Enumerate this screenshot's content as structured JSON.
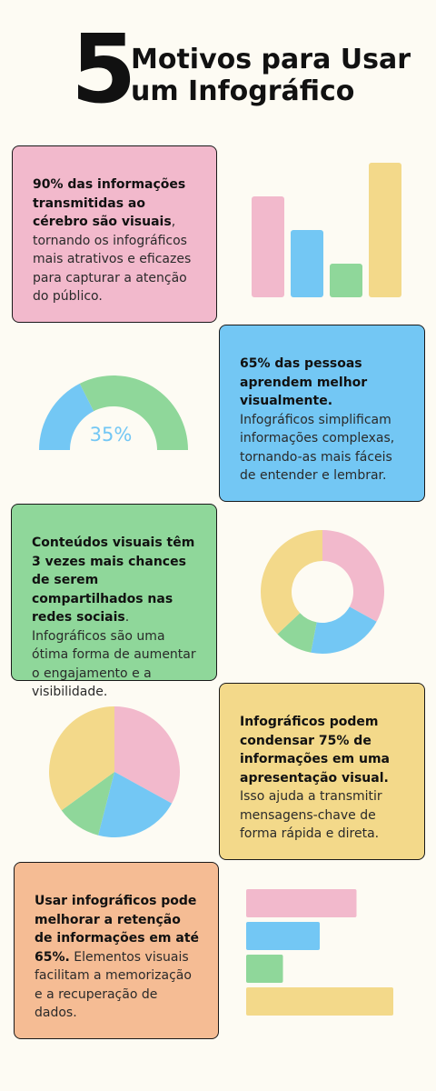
{
  "header": {
    "number": "5",
    "title_line1": "Motivos para Usar",
    "title_line2": "um Infográfico"
  },
  "colors": {
    "pink": "#f2b9cc",
    "blue": "#73c7f4",
    "green": "#8fd79a",
    "yellow": "#f3d98a",
    "orange": "#f5bc94"
  },
  "sections": [
    {
      "bold": "90% das informações transmitidas ao cérebro são visuais",
      "text": ", tornando os infográficos mais atrativos e eficazes para capturar a atenção do público."
    },
    {
      "bold": "65% das pessoas aprendem melhor visualmente.",
      "text": " Infográficos simplificam informações complexas, tornando-as mais fáceis de entender e lembrar."
    },
    {
      "bold": "Conteúdos visuais têm 3 vezes mais chances de serem compartilhados nas redes sociais",
      "text": ". Infográficos são uma ótima forma de aumentar o engajamento e a visibilidade."
    },
    {
      "bold": "Infográficos podem condensar 75% de informações em uma apresentação visual.",
      "text": " Isso ajuda a transmitir mensagens-chave de forma rápida e direta."
    },
    {
      "bold": "Usar infográficos pode melhorar a retenção de informações em até 65%.",
      "text": " Elementos visuais facilitam a memorização e a recuperação de dados."
    }
  ],
  "chart_data": [
    {
      "type": "bar",
      "orientation": "vertical",
      "values": [
        0.75,
        0.5,
        0.25,
        1.0
      ],
      "colors": [
        "#f2b9cc",
        "#73c7f4",
        "#8fd79a",
        "#f3d98a"
      ]
    },
    {
      "type": "gauge",
      "value": 35,
      "max": 100,
      "label": "35%",
      "colors": [
        "#73c7f4",
        "#8fd79a"
      ]
    },
    {
      "type": "donut",
      "values": [
        33,
        20,
        10,
        37
      ],
      "colors": [
        "#f2b9cc",
        "#73c7f4",
        "#8fd79a",
        "#f3d98a"
      ]
    },
    {
      "type": "pie",
      "values": [
        33,
        21,
        11,
        35
      ],
      "colors": [
        "#f2b9cc",
        "#73c7f4",
        "#8fd79a",
        "#f3d98a"
      ]
    },
    {
      "type": "bar",
      "orientation": "horizontal",
      "values": [
        0.75,
        0.5,
        0.25,
        1.0
      ],
      "colors": [
        "#f2b9cc",
        "#73c7f4",
        "#8fd79a",
        "#f3d98a"
      ]
    }
  ]
}
